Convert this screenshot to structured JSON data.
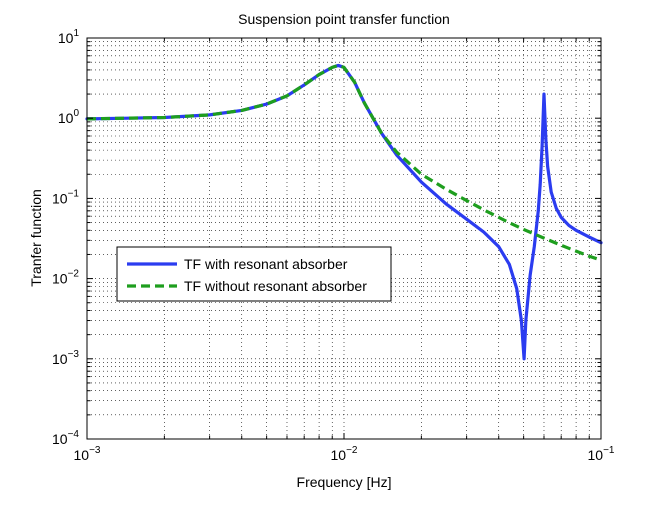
{
  "chart_data": {
    "type": "line",
    "title": "Suspension point transfer function",
    "xlabel": "Frequency [Hz]",
    "ylabel": "Tranfer function",
    "xscale": "log",
    "yscale": "log",
    "xlim": [
      0.001,
      0.1
    ],
    "ylim": [
      0.0001,
      10
    ],
    "grid": true,
    "grid_minor": true,
    "legend_position": "center-left",
    "x_ticks": [
      {
        "value": 0.001,
        "base": "10",
        "exp": "−3"
      },
      {
        "value": 0.01,
        "base": "10",
        "exp": "−2"
      },
      {
        "value": 0.1,
        "base": "10",
        "exp": "−1"
      }
    ],
    "y_ticks": [
      {
        "value": 0.0001,
        "base": "10",
        "exp": "−4"
      },
      {
        "value": 0.001,
        "base": "10",
        "exp": "−3"
      },
      {
        "value": 0.01,
        "base": "10",
        "exp": "−2"
      },
      {
        "value": 0.1,
        "base": "10",
        "exp": "−1"
      },
      {
        "value": 1,
        "base": "10",
        "exp": "0"
      },
      {
        "value": 10,
        "base": "10",
        "exp": "1"
      }
    ],
    "series": [
      {
        "name": "TF with resonant absorber",
        "color": "#2b3cf0",
        "style": "solid",
        "x": [
          0.001,
          0.002,
          0.003,
          0.004,
          0.005,
          0.006,
          0.007,
          0.008,
          0.009,
          0.0095,
          0.01,
          0.011,
          0.012,
          0.014,
          0.016,
          0.02,
          0.025,
          0.03,
          0.035,
          0.04,
          0.044,
          0.047,
          0.049,
          0.0502,
          0.051,
          0.053,
          0.055,
          0.057,
          0.058,
          0.059,
          0.06,
          0.061,
          0.062,
          0.064,
          0.067,
          0.07,
          0.075,
          0.08,
          0.09,
          0.1
        ],
        "y": [
          0.98,
          1.02,
          1.1,
          1.25,
          1.5,
          1.9,
          2.6,
          3.5,
          4.3,
          4.55,
          4.3,
          2.8,
          1.55,
          0.65,
          0.35,
          0.16,
          0.085,
          0.055,
          0.038,
          0.025,
          0.015,
          0.0075,
          0.003,
          0.001,
          0.003,
          0.011,
          0.025,
          0.07,
          0.15,
          0.45,
          2.0,
          0.55,
          0.25,
          0.12,
          0.075,
          0.058,
          0.046,
          0.04,
          0.033,
          0.028
        ]
      },
      {
        "name": "TF without resonant absorber",
        "color": "#1e9e1e",
        "style": "dashed",
        "x": [
          0.001,
          0.002,
          0.003,
          0.004,
          0.005,
          0.006,
          0.007,
          0.008,
          0.009,
          0.0095,
          0.01,
          0.011,
          0.012,
          0.014,
          0.016,
          0.02,
          0.025,
          0.03,
          0.035,
          0.04,
          0.045,
          0.05,
          0.055,
          0.06,
          0.07,
          0.08,
          0.09,
          0.1
        ],
        "y": [
          0.98,
          1.02,
          1.1,
          1.25,
          1.5,
          1.9,
          2.6,
          3.5,
          4.3,
          4.55,
          4.3,
          2.8,
          1.55,
          0.65,
          0.38,
          0.2,
          0.13,
          0.094,
          0.072,
          0.058,
          0.048,
          0.041,
          0.036,
          0.032,
          0.026,
          0.022,
          0.019,
          0.017
        ]
      }
    ]
  }
}
